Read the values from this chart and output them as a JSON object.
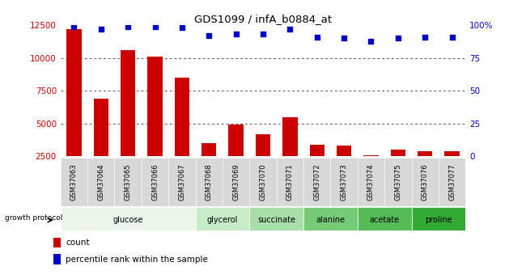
{
  "title": "GDS1099 / infA_b0884_at",
  "samples": [
    "GSM37063",
    "GSM37064",
    "GSM37065",
    "GSM37066",
    "GSM37067",
    "GSM37068",
    "GSM37069",
    "GSM37070",
    "GSM37071",
    "GSM37072",
    "GSM37073",
    "GSM37074",
    "GSM37075",
    "GSM37076",
    "GSM37077"
  ],
  "counts": [
    12200,
    6900,
    10600,
    10100,
    8500,
    3500,
    4900,
    4200,
    5500,
    3400,
    3300,
    2600,
    3000,
    2900,
    2900
  ],
  "percentiles": [
    99,
    97,
    99,
    99,
    98,
    92,
    93,
    93,
    97,
    91,
    90,
    88,
    90,
    91,
    91
  ],
  "ylim_left": [
    2500,
    12500
  ],
  "ylim_right": [
    0,
    100
  ],
  "yticks_left": [
    2500,
    5000,
    7500,
    10000,
    12500
  ],
  "yticks_right": [
    0,
    25,
    50,
    75,
    100
  ],
  "ytick_right_labels": [
    "0",
    "25",
    "50",
    "75",
    "100%"
  ],
  "groups": [
    {
      "label": "glucose",
      "start": 0,
      "end": 5,
      "color": "#eaf7ea"
    },
    {
      "label": "glycerol",
      "start": 5,
      "end": 7,
      "color": "#c8ecc8"
    },
    {
      "label": "succinate",
      "start": 7,
      "end": 9,
      "color": "#a8dea8"
    },
    {
      "label": "alanine",
      "start": 9,
      "end": 11,
      "color": "#76cc76"
    },
    {
      "label": "acetate",
      "start": 11,
      "end": 13,
      "color": "#55bb55"
    },
    {
      "label": "proline",
      "start": 13,
      "end": 15,
      "color": "#33aa33"
    }
  ],
  "bar_color": "#cc0000",
  "dot_color": "#0000cc",
  "grid_color": "#555555",
  "label_color_red": "#cc0000",
  "label_color_blue": "#0000cc",
  "bg_color": "#ffffff",
  "sample_bg_color": "#d8d8d8"
}
